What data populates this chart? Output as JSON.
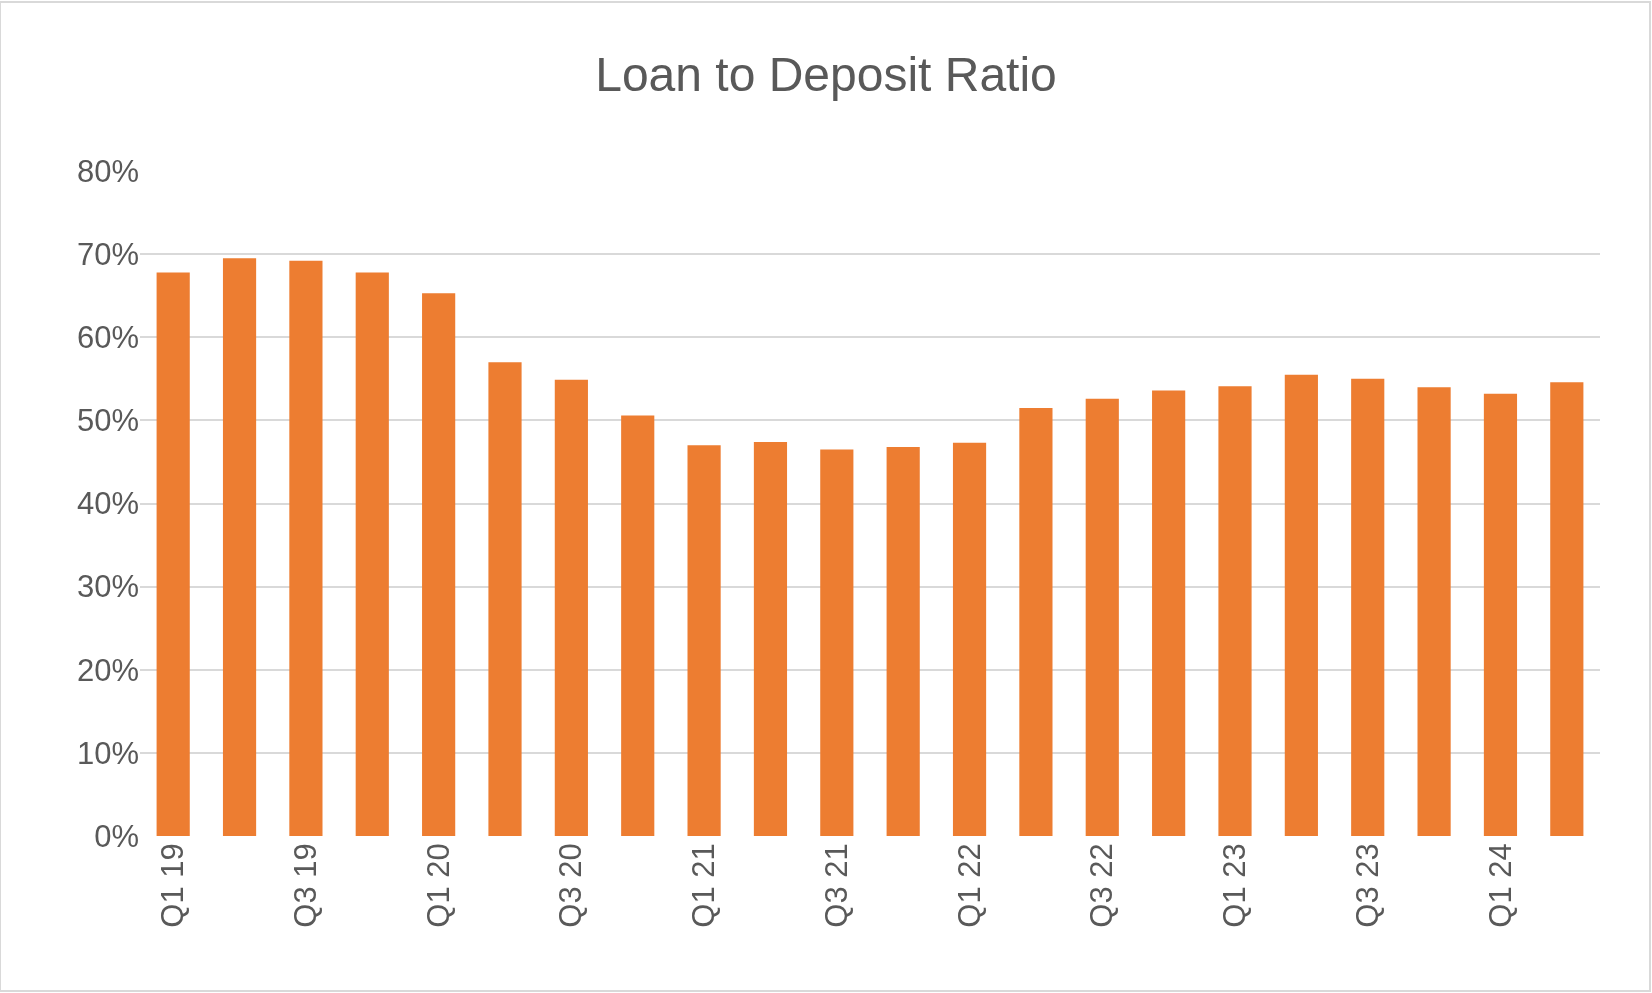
{
  "chart_data": {
    "type": "bar",
    "title": "Loan to Deposit Ratio",
    "categories": [
      "Q1 19",
      null,
      "Q3 19",
      null,
      "Q1 20",
      null,
      "Q3 20",
      null,
      "Q1 21",
      null,
      "Q3 21",
      null,
      "Q1 22",
      null,
      "Q3 22",
      null,
      "Q1 23",
      null,
      "Q3 23",
      null,
      "Q1 24",
      null
    ],
    "values": [
      67.8,
      69.5,
      69.2,
      67.8,
      65.3,
      57.0,
      54.9,
      50.6,
      47.0,
      47.4,
      46.5,
      46.8,
      47.3,
      51.5,
      52.6,
      53.6,
      54.1,
      55.5,
      55.0,
      54.0,
      53.2,
      54.6
    ],
    "color": "#ed7d31",
    "ylim": [
      0,
      80
    ],
    "yticks": [
      {
        "value": 0,
        "label": "0%"
      },
      {
        "value": 10,
        "label": "10%"
      },
      {
        "value": 20,
        "label": "20%"
      },
      {
        "value": 30,
        "label": "30%"
      },
      {
        "value": 40,
        "label": "40%"
      },
      {
        "value": 50,
        "label": "50%"
      },
      {
        "value": 60,
        "label": "60%"
      },
      {
        "value": 70,
        "label": "70%"
      },
      {
        "value": 80,
        "label": "80%"
      }
    ],
    "grid": "y",
    "legend": false
  }
}
